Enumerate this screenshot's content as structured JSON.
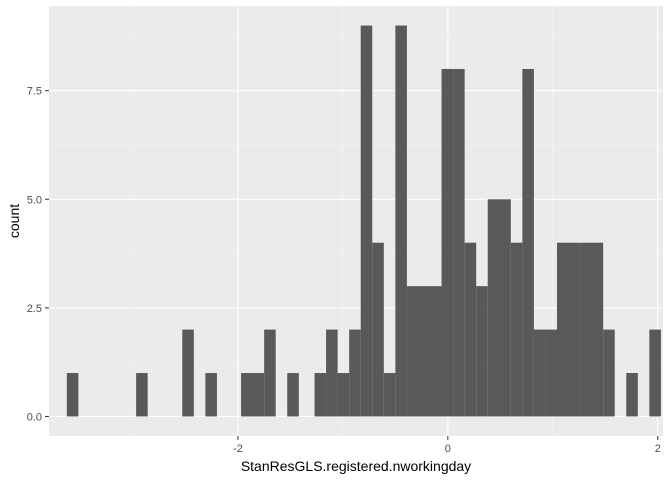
{
  "chart_data": {
    "type": "bar",
    "subtype": "histogram",
    "title": "",
    "xlabel": "StanResGLS.registered.nworkingday",
    "ylabel": "count",
    "xlim": [
      -3.8,
      2.05
    ],
    "ylim": [
      -0.45,
      9.45
    ],
    "x_ticks": [
      -2,
      0,
      2
    ],
    "y_ticks": [
      0.0,
      2.5,
      5.0,
      7.5
    ],
    "x_tick_labels": [
      "-2",
      "0",
      "2"
    ],
    "y_tick_labels": [
      "0.0",
      "2.5",
      "5.0",
      "7.5"
    ],
    "grid": true,
    "legend": "none",
    "colors": {
      "panel_background": "#ebebeb",
      "grid_major": "#ffffff",
      "grid_minor": "#f5f5f5",
      "bar_fill": "#595959"
    },
    "bins": [
      {
        "x0": -3.63,
        "x1": -3.52,
        "count": 1
      },
      {
        "x0": -2.97,
        "x1": -2.86,
        "count": 1
      },
      {
        "x0": -2.53,
        "x1": -2.42,
        "count": 2
      },
      {
        "x0": -2.31,
        "x1": -2.2,
        "count": 1
      },
      {
        "x0": -1.97,
        "x1": -1.75,
        "count": 1
      },
      {
        "x0": -1.75,
        "x1": -1.64,
        "count": 2
      },
      {
        "x0": -1.53,
        "x1": -1.42,
        "count": 1
      },
      {
        "x0": -1.27,
        "x1": -1.16,
        "count": 1
      },
      {
        "x0": -1.16,
        "x1": -1.05,
        "count": 2
      },
      {
        "x0": -1.05,
        "x1": -0.94,
        "count": 1
      },
      {
        "x0": -0.94,
        "x1": -0.83,
        "count": 2
      },
      {
        "x0": -0.83,
        "x1": -0.72,
        "count": 9
      },
      {
        "x0": -0.72,
        "x1": -0.61,
        "count": 4
      },
      {
        "x0": -0.61,
        "x1": -0.5,
        "count": 1
      },
      {
        "x0": -0.5,
        "x1": -0.39,
        "count": 9
      },
      {
        "x0": -0.39,
        "x1": -0.17,
        "count": 3
      },
      {
        "x0": -0.17,
        "x1": -0.06,
        "count": 3
      },
      {
        "x0": -0.06,
        "x1": 0.05,
        "count": 8
      },
      {
        "x0": 0.05,
        "x1": 0.16,
        "count": 8
      },
      {
        "x0": 0.16,
        "x1": 0.27,
        "count": 4
      },
      {
        "x0": 0.27,
        "x1": 0.38,
        "count": 3
      },
      {
        "x0": 0.38,
        "x1": 0.6,
        "count": 5
      },
      {
        "x0": 0.6,
        "x1": 0.71,
        "count": 4
      },
      {
        "x0": 0.71,
        "x1": 0.82,
        "count": 8
      },
      {
        "x0": 0.82,
        "x1": 0.93,
        "count": 2
      },
      {
        "x0": 0.93,
        "x1": 1.04,
        "count": 2
      },
      {
        "x0": 1.04,
        "x1": 1.26,
        "count": 4
      },
      {
        "x0": 1.26,
        "x1": 1.48,
        "count": 4
      },
      {
        "x0": 1.48,
        "x1": 1.59,
        "count": 2
      },
      {
        "x0": 1.7,
        "x1": 1.81,
        "count": 1
      },
      {
        "x0": 1.92,
        "x1": 2.03,
        "count": 2
      }
    ]
  }
}
